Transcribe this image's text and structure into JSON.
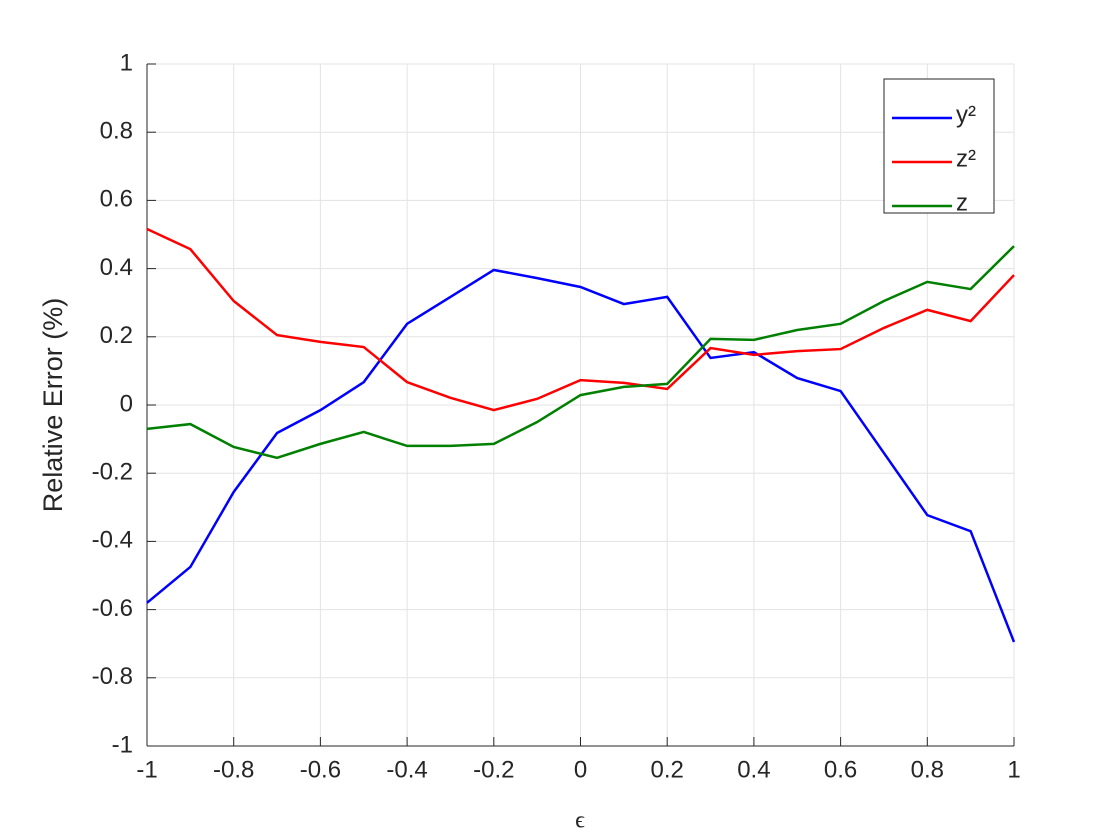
{
  "chart_data": {
    "type": "line",
    "xlabel": "ϵ",
    "ylabel": "Relative Error (%)",
    "x": [
      -1,
      -0.9,
      -0.8,
      -0.7,
      -0.6,
      -0.5,
      -0.4,
      -0.3,
      -0.2,
      -0.1,
      0,
      0.1,
      0.2,
      0.3,
      0.4,
      0.5,
      0.6,
      0.7,
      0.8,
      0.9,
      1
    ],
    "series": [
      {
        "name": "y²",
        "color": "#0000ff",
        "values": [
          -0.58,
          -0.475,
          -0.255,
          -0.082,
          -0.015,
          0.067,
          0.238,
          0.317,
          0.396,
          0.372,
          0.346,
          0.296,
          0.317,
          0.138,
          0.155,
          0.079,
          0.041,
          -0.141,
          -0.323,
          -0.37,
          -0.695
        ]
      },
      {
        "name": "z²",
        "color": "#ff0000",
        "values": [
          0.516,
          0.457,
          0.305,
          0.205,
          0.185,
          0.17,
          0.067,
          0.021,
          -0.015,
          0.018,
          0.073,
          0.065,
          0.047,
          0.167,
          0.147,
          0.158,
          0.164,
          0.226,
          0.279,
          0.246,
          0.381
        ]
      },
      {
        "name": "z",
        "color": "#008000",
        "values": [
          -0.07,
          -0.056,
          -0.123,
          -0.155,
          -0.114,
          -0.079,
          -0.12,
          -0.12,
          -0.114,
          -0.05,
          0.029,
          0.053,
          0.062,
          0.194,
          0.191,
          0.22,
          0.238,
          0.305,
          0.361,
          0.34,
          0.466
        ]
      }
    ],
    "xlim": [
      -1,
      1
    ],
    "ylim": [
      -1,
      1
    ],
    "xticks": [
      -1,
      -0.8,
      -0.6,
      -0.4,
      -0.2,
      0,
      0.2,
      0.4,
      0.6,
      0.8,
      1
    ],
    "yticks": [
      -1,
      -0.8,
      -0.6,
      -0.4,
      -0.2,
      0,
      0.2,
      0.4,
      0.6,
      0.8,
      1
    ],
    "grid": true,
    "legend": "northeast"
  }
}
